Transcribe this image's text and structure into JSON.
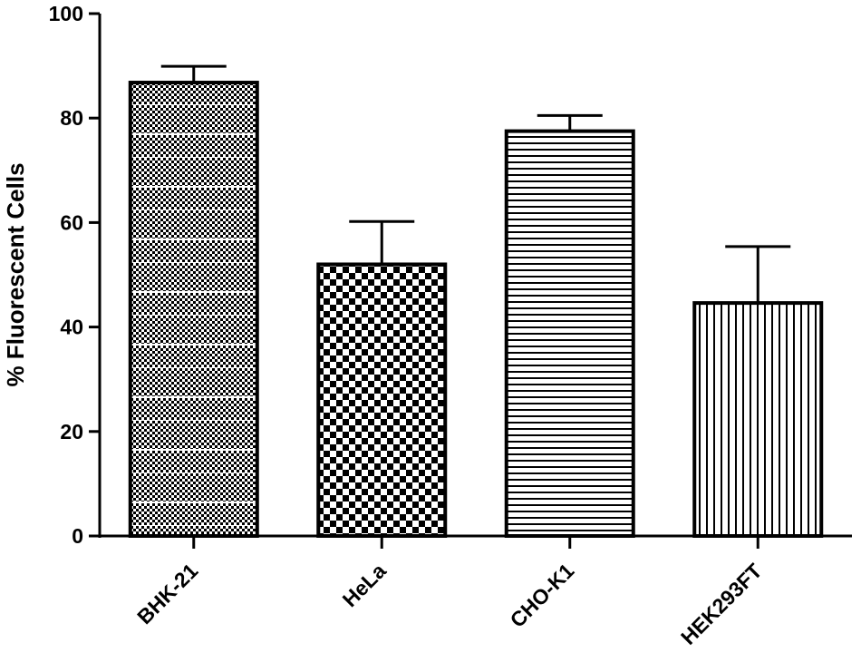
{
  "chart_data": {
    "type": "bar",
    "title": "",
    "xlabel": "",
    "ylabel": "% Fluorescent Cells",
    "ylim": [
      0,
      100
    ],
    "yticks": [
      "0",
      "20",
      "40",
      "60",
      "80",
      "100"
    ],
    "categories": [
      "BHK-21",
      "HeLa",
      "CHO-K1",
      "HEK293FT"
    ],
    "values": [
      86.8,
      52.0,
      77.5,
      44.6
    ],
    "error_upper": [
      3.1,
      8.2,
      3.0,
      10.8
    ],
    "patterns": [
      "fine-checker-dashed",
      "checker",
      "horizontal-lines",
      "vertical-lines"
    ],
    "grid": false,
    "bar_color": "#000000",
    "background": "#ffffff"
  }
}
